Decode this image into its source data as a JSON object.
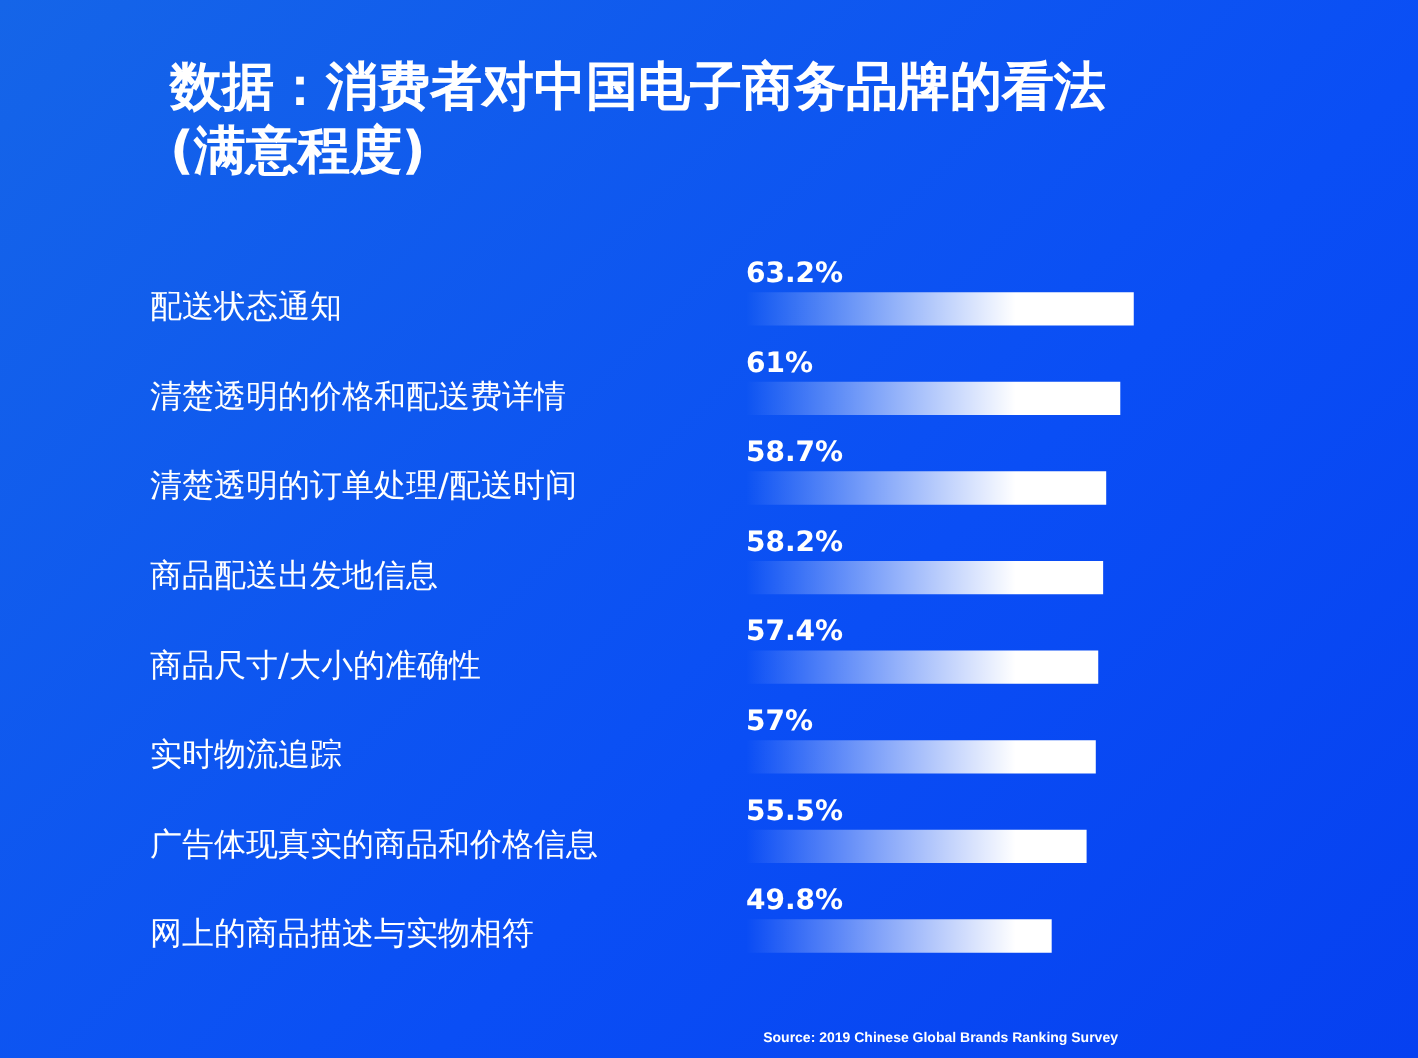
{
  "chart_data": {
    "type": "bar",
    "orientation": "horizontal",
    "title": "数据：消费者对中国电子商务品牌的看法(满意程度)",
    "categories": [
      "配送状态通知",
      "清楚透明的价格和配送费详情",
      "清楚透明的订单处理/配送时间",
      "商品配送出发地信息",
      "商品尺寸/大小的准确性",
      "实时物流追踪",
      "广告体现真实的商品和价格信息",
      "网上的商品描述与实物相符"
    ],
    "values": [
      63.2,
      61,
      58.7,
      58.2,
      57.4,
      57,
      55.5,
      49.8
    ],
    "value_labels": [
      "63.2%",
      "61%",
      "58.7%",
      "58.2%",
      "57.4%",
      "57%",
      "55.5%",
      "49.8%"
    ],
    "color": "#ffffff",
    "annotations": [
      "Source: 2019 Chinese Global Brands Ranking Survey"
    ]
  }
}
